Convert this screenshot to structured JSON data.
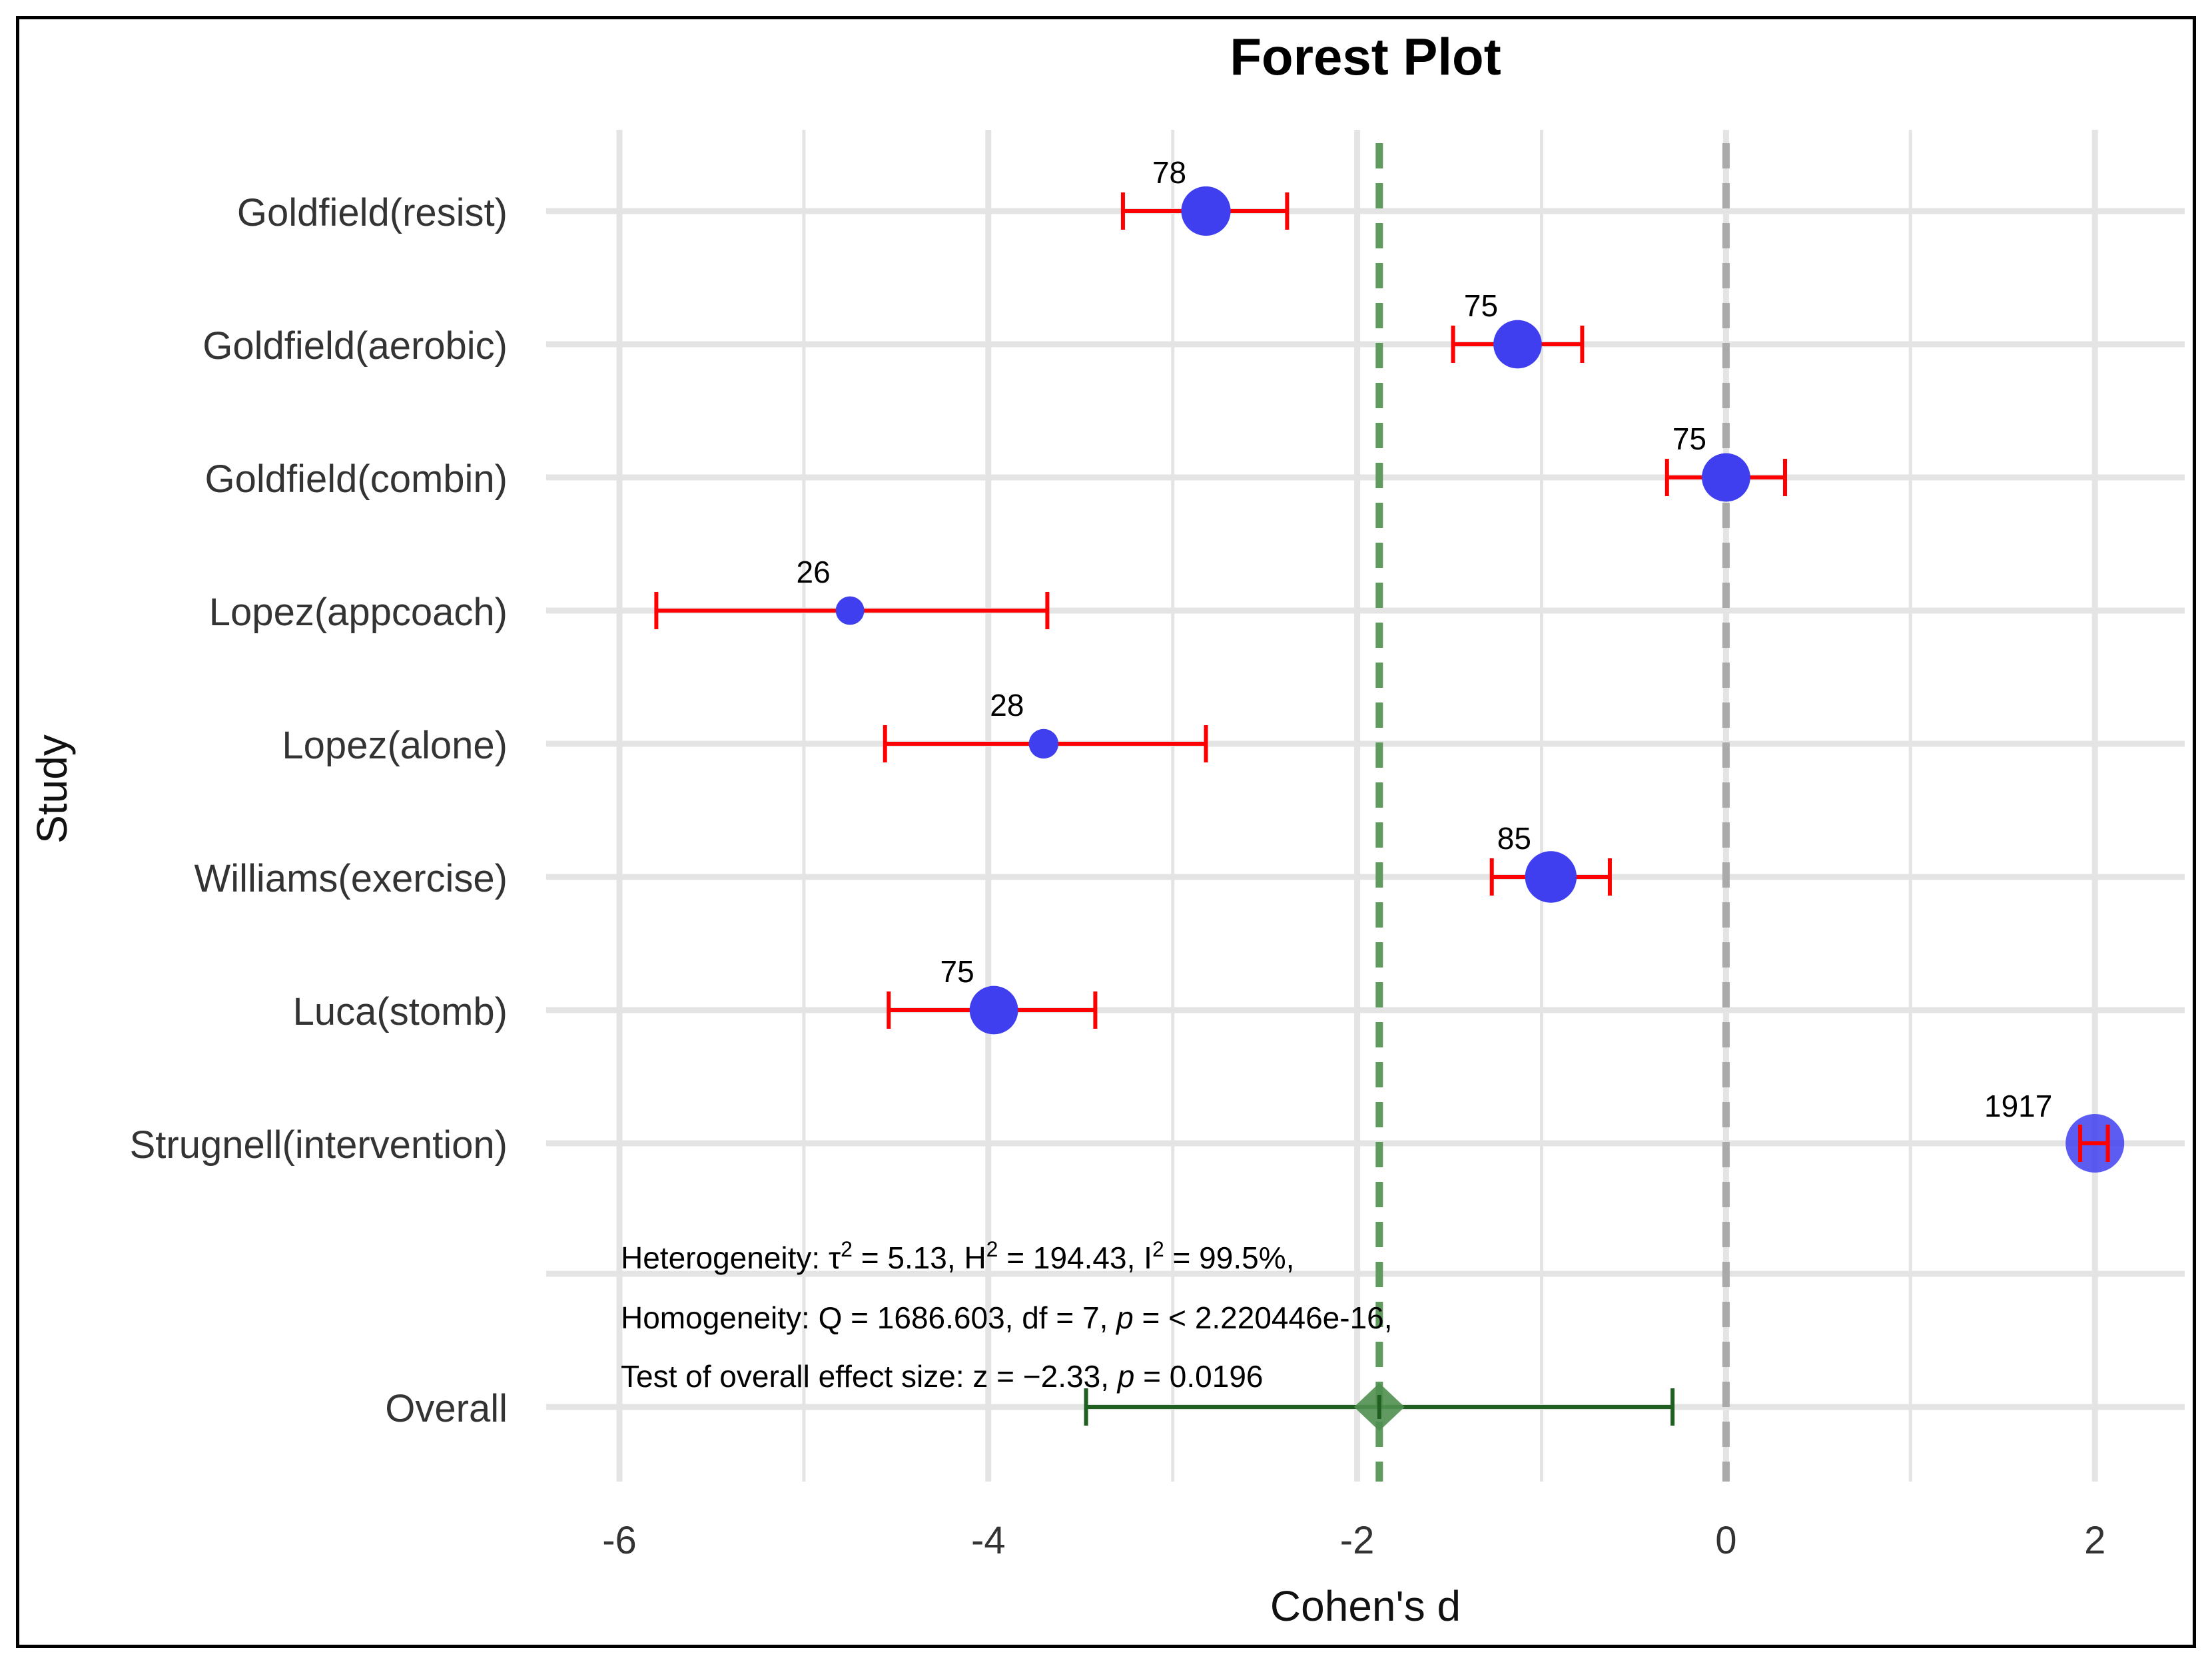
{
  "chart_data": {
    "type": "forest",
    "title": "Forest Plot",
    "xlabel": "Cohen's d",
    "ylabel": "Study",
    "xlim": [
      -6.7,
      2.5
    ],
    "xticks": [
      -6,
      -4,
      -2,
      0,
      2
    ],
    "xtick_labels": [
      "-6",
      "-4",
      "-2",
      "0",
      "2"
    ],
    "studies": [
      {
        "label": "Goldfield(resist)",
        "estimate": -2.82,
        "lower": -3.27,
        "upper": -2.38,
        "n": "78"
      },
      {
        "label": "Goldfield(aerobic)",
        "estimate": -1.13,
        "lower": -1.48,
        "upper": -0.78,
        "n": "75"
      },
      {
        "label": "Goldfield(combin)",
        "estimate": 0.0,
        "lower": -0.32,
        "upper": 0.32,
        "n": "75"
      },
      {
        "label": "Lopez(appcoach)",
        "estimate": -4.75,
        "lower": -5.8,
        "upper": -3.68,
        "n": "26"
      },
      {
        "label": "Lopez(alone)",
        "estimate": -3.7,
        "lower": -4.56,
        "upper": -2.82,
        "n": "28"
      },
      {
        "label": "Williams(exercise)",
        "estimate": -0.95,
        "lower": -1.27,
        "upper": -0.63,
        "n": "85"
      },
      {
        "label": "Luca(stomb)",
        "estimate": -3.97,
        "lower": -4.54,
        "upper": -3.42,
        "n": "75"
      },
      {
        "label": "Strugnell(intervention)",
        "estimate": 2.0,
        "lower": 1.92,
        "upper": 2.07,
        "n": "1917"
      }
    ],
    "overall": {
      "label": "Overall",
      "estimate": -1.88,
      "lower": -3.47,
      "upper": -0.29
    },
    "reference_lines": {
      "null_effect": 0,
      "pooled_effect": -1.88
    },
    "annotations": [
      "Heterogeneity:  τ² = 5.13, H² = 194.43, I² = 99.5%,",
      "Homogeneity: Q = 1686.603, df = 7, p = < 2.220446e-16,",
      "Test of overall effect size: z = −2.33, p = 0.0196"
    ],
    "colors": {
      "study_ci": "#ff0000",
      "study_point": "#3f3ff0",
      "overall": "#1f5f1f",
      "overall_diamond": "#4f8f4f",
      "pooled_line": "#5f9a5f",
      "null_line": "#aaaaaa",
      "grid": "#e4e4e4"
    }
  }
}
